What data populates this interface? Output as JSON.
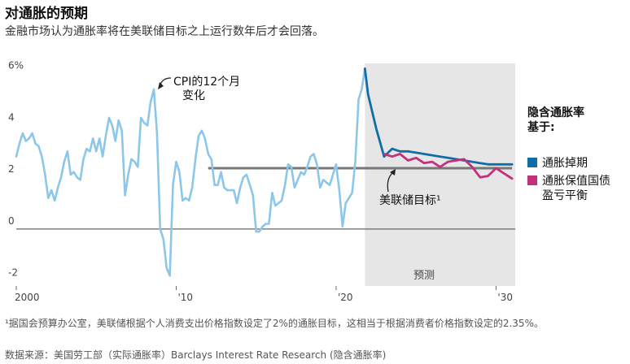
{
  "header": {
    "title": "对通胀的预期",
    "subtitle": "金融市场认为通胀率将在美联储目标之上运行数年后才会回落。"
  },
  "footnote": "¹据国会预算办公室，美联储根据个人消费支出价格指数设定了2%的通胀目标，这相当于根据消费者价格指数设定的2.35%。",
  "source": "数据来源：美国劳工部（实际通胀率）Barclays Interest Rate Research (隐含通胀率)",
  "colors": {
    "cpi": "#8cc7ea",
    "expected": "#0f6ea6",
    "breakeven": "#c4307a",
    "target": "#777777",
    "forecast_bg": "#e6e6e6"
  },
  "chart_data": {
    "type": "line",
    "title": "对通胀的预期",
    "subtitle": "金融市场认为通胀率将在美联储目标之上运行数年后才会回落。",
    "xlabel": "",
    "ylabel": "",
    "xlim": [
      2000,
      2031.2
    ],
    "ylim": [
      -2.2,
      6.4
    ],
    "x_ticks": [
      {
        "value": 2000,
        "label": "2000"
      },
      {
        "value": 2010,
        "label": "'10"
      },
      {
        "value": 2020,
        "label": "'20"
      },
      {
        "value": 2030,
        "label": "'30"
      }
    ],
    "y_ticks": [
      {
        "value": 6,
        "label": "6%"
      },
      {
        "value": 4,
        "label": "4"
      },
      {
        "value": 2,
        "label": "2"
      },
      {
        "value": 0,
        "label": "0"
      },
      {
        "value": -2,
        "label": "-2"
      }
    ],
    "grid": false,
    "forecast_region": {
      "start": 2021.8,
      "end": 2031.2,
      "label": "预测"
    },
    "target_line": {
      "value": 2.35,
      "start": 2012,
      "end": 2031,
      "label": "美联储目标¹"
    },
    "zero_line": 0,
    "series": [
      {
        "name": "CPI的12个月变化",
        "role": "actual",
        "x": [
          2000.0,
          2000.2,
          2000.4,
          2000.6,
          2000.8,
          2001.0,
          2001.2,
          2001.4,
          2001.6,
          2001.8,
          2002.0,
          2002.2,
          2002.4,
          2002.6,
          2002.8,
          2003.0,
          2003.2,
          2003.4,
          2003.6,
          2003.8,
          2004.0,
          2004.2,
          2004.4,
          2004.6,
          2004.8,
          2005.0,
          2005.2,
          2005.4,
          2005.6,
          2005.8,
          2006.0,
          2006.2,
          2006.4,
          2006.6,
          2006.8,
          2007.0,
          2007.2,
          2007.4,
          2007.6,
          2007.8,
          2008.0,
          2008.2,
          2008.4,
          2008.6,
          2008.8,
          2009.0,
          2009.2,
          2009.4,
          2009.6,
          2009.8,
          2010.0,
          2010.2,
          2010.4,
          2010.6,
          2010.8,
          2011.0,
          2011.2,
          2011.4,
          2011.6,
          2011.8,
          2012.0,
          2012.2,
          2012.4,
          2012.6,
          2012.8,
          2013.0,
          2013.2,
          2013.4,
          2013.6,
          2013.8,
          2014.0,
          2014.2,
          2014.4,
          2014.6,
          2014.8,
          2015.0,
          2015.2,
          2015.4,
          2015.6,
          2015.8,
          2016.0,
          2016.2,
          2016.4,
          2016.6,
          2016.8,
          2017.0,
          2017.2,
          2017.4,
          2017.6,
          2017.8,
          2018.0,
          2018.2,
          2018.4,
          2018.6,
          2018.8,
          2019.0,
          2019.2,
          2019.4,
          2019.6,
          2019.8,
          2020.0,
          2020.2,
          2020.4,
          2020.6,
          2020.8,
          2021.0,
          2021.2,
          2021.4,
          2021.6,
          2021.8
        ],
        "y": [
          2.8,
          3.3,
          3.7,
          3.4,
          3.5,
          3.7,
          3.3,
          3.2,
          2.8,
          2.1,
          1.2,
          1.5,
          1.1,
          1.6,
          2.0,
          2.6,
          3.0,
          2.1,
          2.2,
          2.0,
          1.9,
          2.7,
          3.1,
          3.0,
          3.5,
          3.0,
          3.5,
          2.8,
          3.6,
          4.3,
          4.0,
          3.4,
          4.2,
          3.8,
          1.3,
          2.1,
          2.7,
          2.6,
          2.4,
          4.3,
          4.1,
          4.0,
          4.9,
          5.4,
          3.7,
          0.0,
          -0.4,
          -1.5,
          -1.8,
          1.7,
          2.6,
          2.2,
          1.1,
          1.2,
          1.1,
          1.6,
          2.7,
          3.6,
          3.8,
          3.5,
          2.9,
          2.7,
          1.7,
          1.7,
          2.2,
          1.6,
          1.5,
          1.5,
          1.5,
          1.0,
          1.6,
          2.0,
          2.1,
          1.7,
          1.3,
          -0.1,
          -0.1,
          0.1,
          0.2,
          0.2,
          1.4,
          0.9,
          1.0,
          1.1,
          1.7,
          2.5,
          2.4,
          1.6,
          1.9,
          2.2,
          2.1,
          2.4,
          2.8,
          2.9,
          2.5,
          1.6,
          1.9,
          1.8,
          1.7,
          2.1,
          2.5,
          1.5,
          0.1,
          1.0,
          1.2,
          1.4,
          2.6,
          5.0,
          5.4,
          6.2
        ]
      },
      {
        "name": "通胀掉期",
        "role": "expected",
        "x": [
          2021.8,
          2022.0,
          2022.5,
          2023.0,
          2023.5,
          2024.0,
          2024.5,
          2025.0,
          2025.5,
          2026.0,
          2026.5,
          2027.0,
          2027.5,
          2028.0,
          2028.5,
          2029.0,
          2029.5,
          2030.0,
          2030.5,
          2031.0
        ],
        "y": [
          6.2,
          5.2,
          3.9,
          2.8,
          3.1,
          3.0,
          3.0,
          2.95,
          2.9,
          2.85,
          2.8,
          2.75,
          2.7,
          2.65,
          2.6,
          2.55,
          2.5,
          2.5,
          2.5,
          2.5
        ]
      },
      {
        "name": "通胀保值国债盈亏平衡",
        "role": "breakeven",
        "x": [
          2023.0,
          2023.5,
          2024.0,
          2024.5,
          2025.0,
          2025.5,
          2026.0,
          2026.5,
          2027.0,
          2027.5,
          2028.0,
          2028.5,
          2029.0,
          2029.5,
          2030.0,
          2030.5,
          2031.0
        ],
        "y": [
          2.9,
          2.8,
          2.9,
          2.65,
          2.75,
          2.55,
          2.6,
          2.4,
          2.6,
          2.65,
          2.7,
          2.4,
          2.0,
          2.05,
          2.35,
          2.15,
          1.95
        ]
      }
    ],
    "annotations": [
      {
        "text": "CPI的12个月",
        "text2": "变化",
        "x": 2008.3,
        "y": 5.3
      },
      {
        "text": "美联储目标¹",
        "x": 2022.0,
        "y": 2.3
      }
    ],
    "legend": {
      "placement": "right",
      "title": "隐含通胀率",
      "title2": "基于:",
      "entries": [
        {
          "label": "通胀掉期",
          "color": "#0f6ea6"
        },
        {
          "label": "通胀保值国债",
          "label2": "盈亏平衡",
          "color": "#c4307a"
        }
      ]
    }
  }
}
